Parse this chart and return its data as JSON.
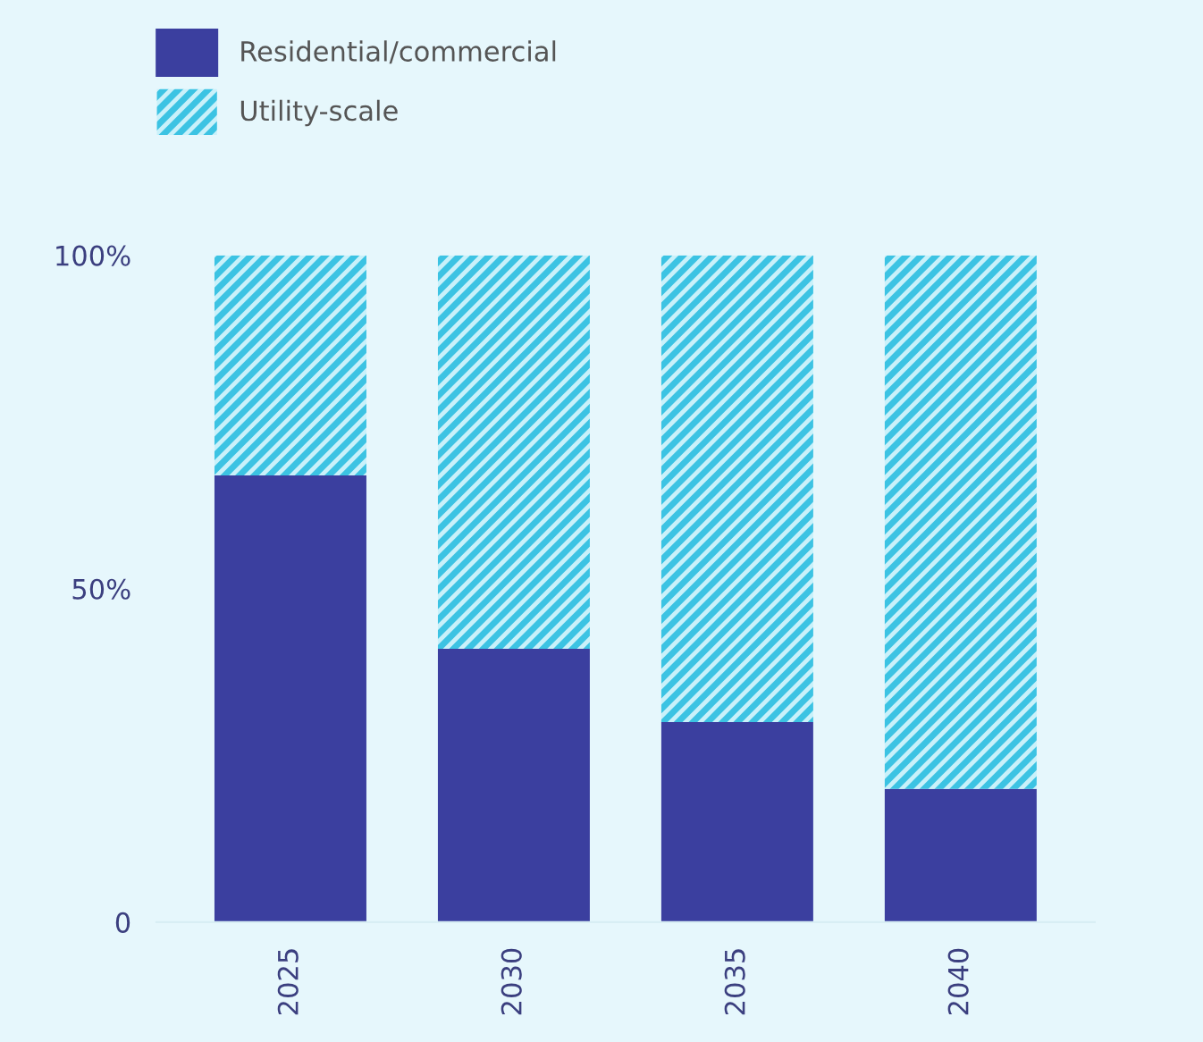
{
  "chart_data": {
    "type": "bar",
    "stacked": true,
    "categories": [
      "2025",
      "2030",
      "2035",
      "2040"
    ],
    "series": [
      {
        "name": "Residential/commercial",
        "color": "#3b3f9f",
        "values": [
          67,
          41,
          30,
          20
        ]
      },
      {
        "name": "Utility-scale",
        "color": "#3cc3e3",
        "values": [
          33,
          59,
          70,
          80
        ]
      }
    ],
    "ylim": [
      0,
      100
    ],
    "yticks": [
      {
        "value": 0,
        "label": "0"
      },
      {
        "value": 50,
        "label": "50%"
      },
      {
        "value": 100,
        "label": "100%"
      }
    ],
    "grid": false,
    "legend": "top left"
  }
}
